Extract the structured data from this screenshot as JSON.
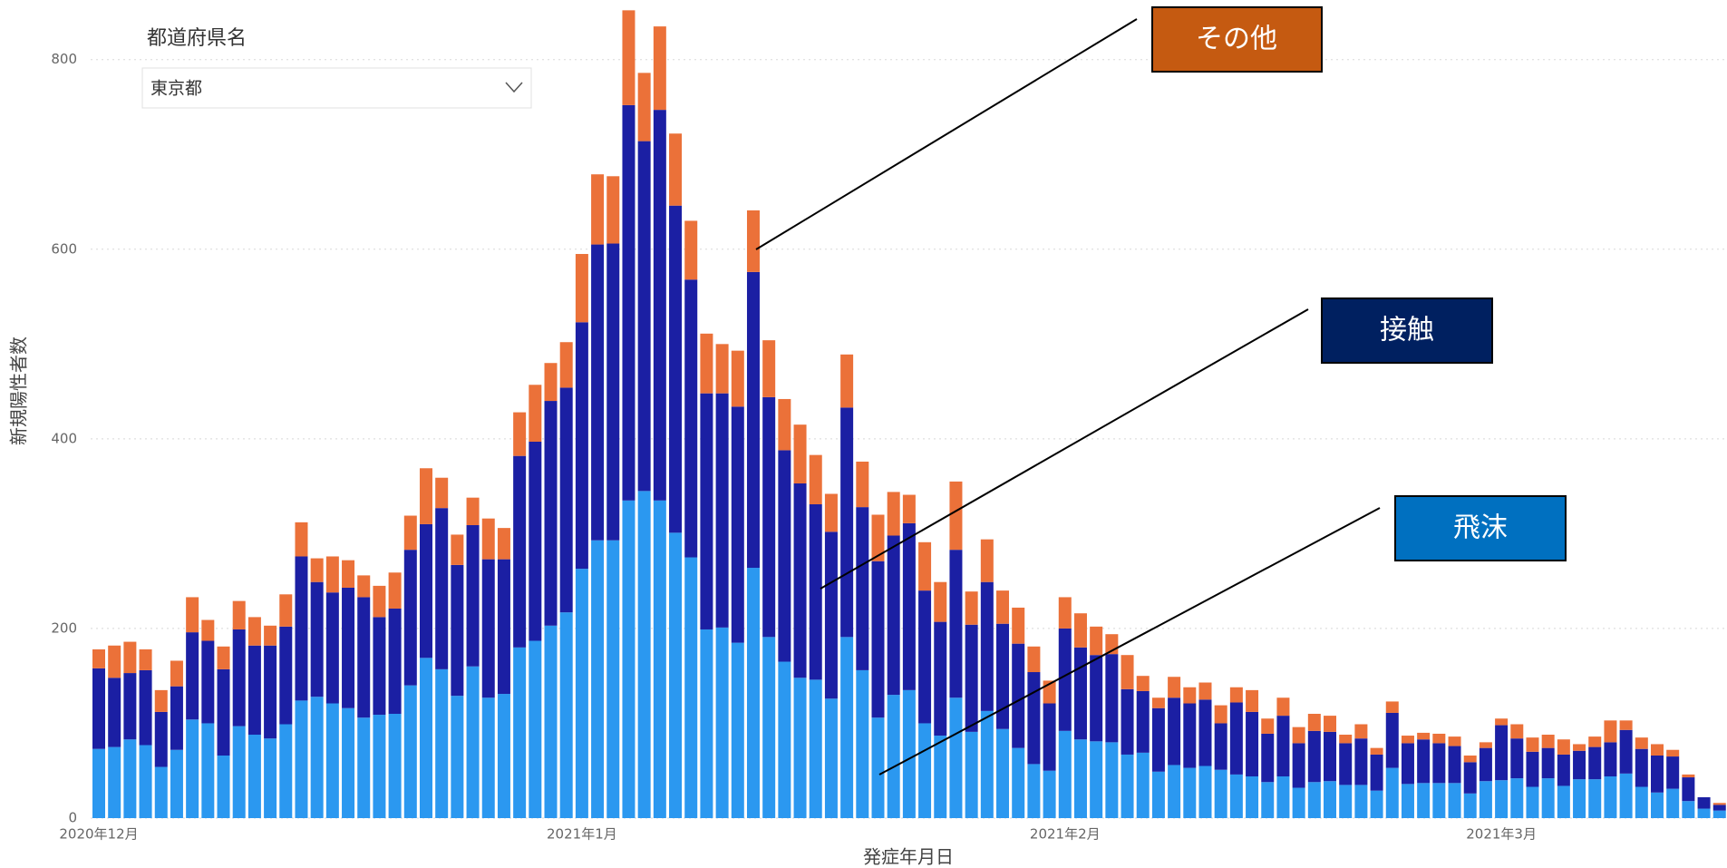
{
  "slicer": {
    "title": "都道府県名",
    "value": "東京都"
  },
  "chart_data": {
    "type": "stacked_bar",
    "xlabel": "発症年月日",
    "ylabel": "新規陽性者数",
    "categories": [
      "2020年12月",
      null,
      null,
      null,
      null,
      null,
      null,
      null,
      null,
      null,
      null,
      null,
      null,
      null,
      null,
      null,
      null,
      null,
      null,
      null,
      null,
      null,
      null,
      null,
      null,
      null,
      null,
      null,
      null,
      null,
      null,
      "2021年1月",
      null,
      null,
      null,
      null,
      null,
      null,
      null,
      null,
      null,
      null,
      null,
      null,
      null,
      null,
      null,
      null,
      null,
      null,
      null,
      null,
      null,
      null,
      null,
      null,
      null,
      null,
      null,
      null,
      null,
      null,
      "2021年2月",
      null,
      null,
      null,
      null,
      null,
      null,
      null,
      null,
      null,
      null,
      null,
      null,
      null,
      null,
      null,
      null,
      null,
      null,
      null,
      null,
      null,
      null,
      null,
      null,
      null,
      null,
      null,
      "2021年3月",
      null,
      null,
      null,
      null,
      null,
      null,
      null,
      null,
      null,
      null,
      null,
      null,
      null,
      null
    ],
    "series": [
      {
        "name": "飛沫",
        "color": "#2b98f0",
        "values": [
          73,
          75,
          83,
          77,
          54,
          72,
          104,
          100,
          66,
          97,
          88,
          84,
          99,
          124,
          128,
          121,
          116,
          106,
          109,
          110,
          140,
          169,
          157,
          129,
          160,
          127,
          131,
          180,
          187,
          203,
          217,
          263,
          293,
          293,
          335,
          345,
          335,
          301,
          275,
          199,
          201,
          185,
          264,
          191,
          165,
          148,
          146,
          126,
          191,
          156,
          106,
          130,
          135,
          100,
          87,
          127,
          91,
          113,
          94,
          74,
          57,
          50,
          92,
          83,
          81,
          80,
          67,
          69,
          49,
          56,
          53,
          55,
          51,
          46,
          44,
          38,
          44,
          32,
          38,
          39,
          35,
          35,
          29,
          53,
          36,
          37,
          37,
          37,
          26,
          39,
          40,
          42,
          33,
          42,
          34,
          41,
          41,
          44,
          47,
          33,
          27,
          31,
          18,
          10,
          8
        ]
      },
      {
        "name": "接触",
        "color": "#1b1fa3",
        "values": [
          85,
          73,
          70,
          79,
          58,
          67,
          92,
          87,
          91,
          102,
          94,
          98,
          103,
          152,
          121,
          117,
          127,
          127,
          103,
          111,
          143,
          141,
          170,
          138,
          149,
          146,
          142,
          202,
          210,
          237,
          237,
          260,
          312,
          313,
          417,
          369,
          412,
          345,
          293,
          249,
          247,
          249,
          312,
          253,
          223,
          205,
          185,
          176,
          242,
          172,
          165,
          168,
          176,
          140,
          120,
          156,
          113,
          136,
          111,
          110,
          97,
          71,
          108,
          97,
          91,
          93,
          69,
          65,
          67,
          71,
          68,
          70,
          49,
          76,
          68,
          51,
          64,
          47,
          54,
          52,
          44,
          49,
          38,
          58,
          43,
          46,
          42,
          39,
          33,
          35,
          58,
          42,
          37,
          32,
          33,
          30,
          34,
          36,
          46,
          40,
          39,
          34,
          25,
          12,
          6
        ]
      },
      {
        "name": "その他",
        "color": "#eb7139",
        "values": [
          20,
          34,
          33,
          22,
          23,
          27,
          37,
          22,
          24,
          30,
          30,
          21,
          34,
          36,
          25,
          38,
          29,
          23,
          33,
          38,
          36,
          59,
          32,
          32,
          29,
          43,
          33,
          46,
          60,
          40,
          48,
          72,
          74,
          71,
          100,
          72,
          88,
          76,
          62,
          63,
          52,
          59,
          65,
          60,
          54,
          62,
          52,
          40,
          56,
          48,
          49,
          46,
          30,
          51,
          42,
          72,
          35,
          45,
          35,
          38,
          27,
          24,
          33,
          36,
          30,
          21,
          36,
          16,
          11,
          22,
          17,
          18,
          19,
          16,
          23,
          16,
          19,
          17,
          18,
          17,
          9,
          15,
          7,
          12,
          8,
          7,
          10,
          10,
          7,
          6,
          7,
          15,
          15,
          14,
          16,
          7,
          11,
          23,
          10,
          12,
          12,
          7,
          3,
          0,
          2
        ]
      }
    ],
    "ylim": [
      0,
      860
    ],
    "yticks": [
      0,
      200,
      400,
      600,
      800
    ],
    "grid": true
  }
}
